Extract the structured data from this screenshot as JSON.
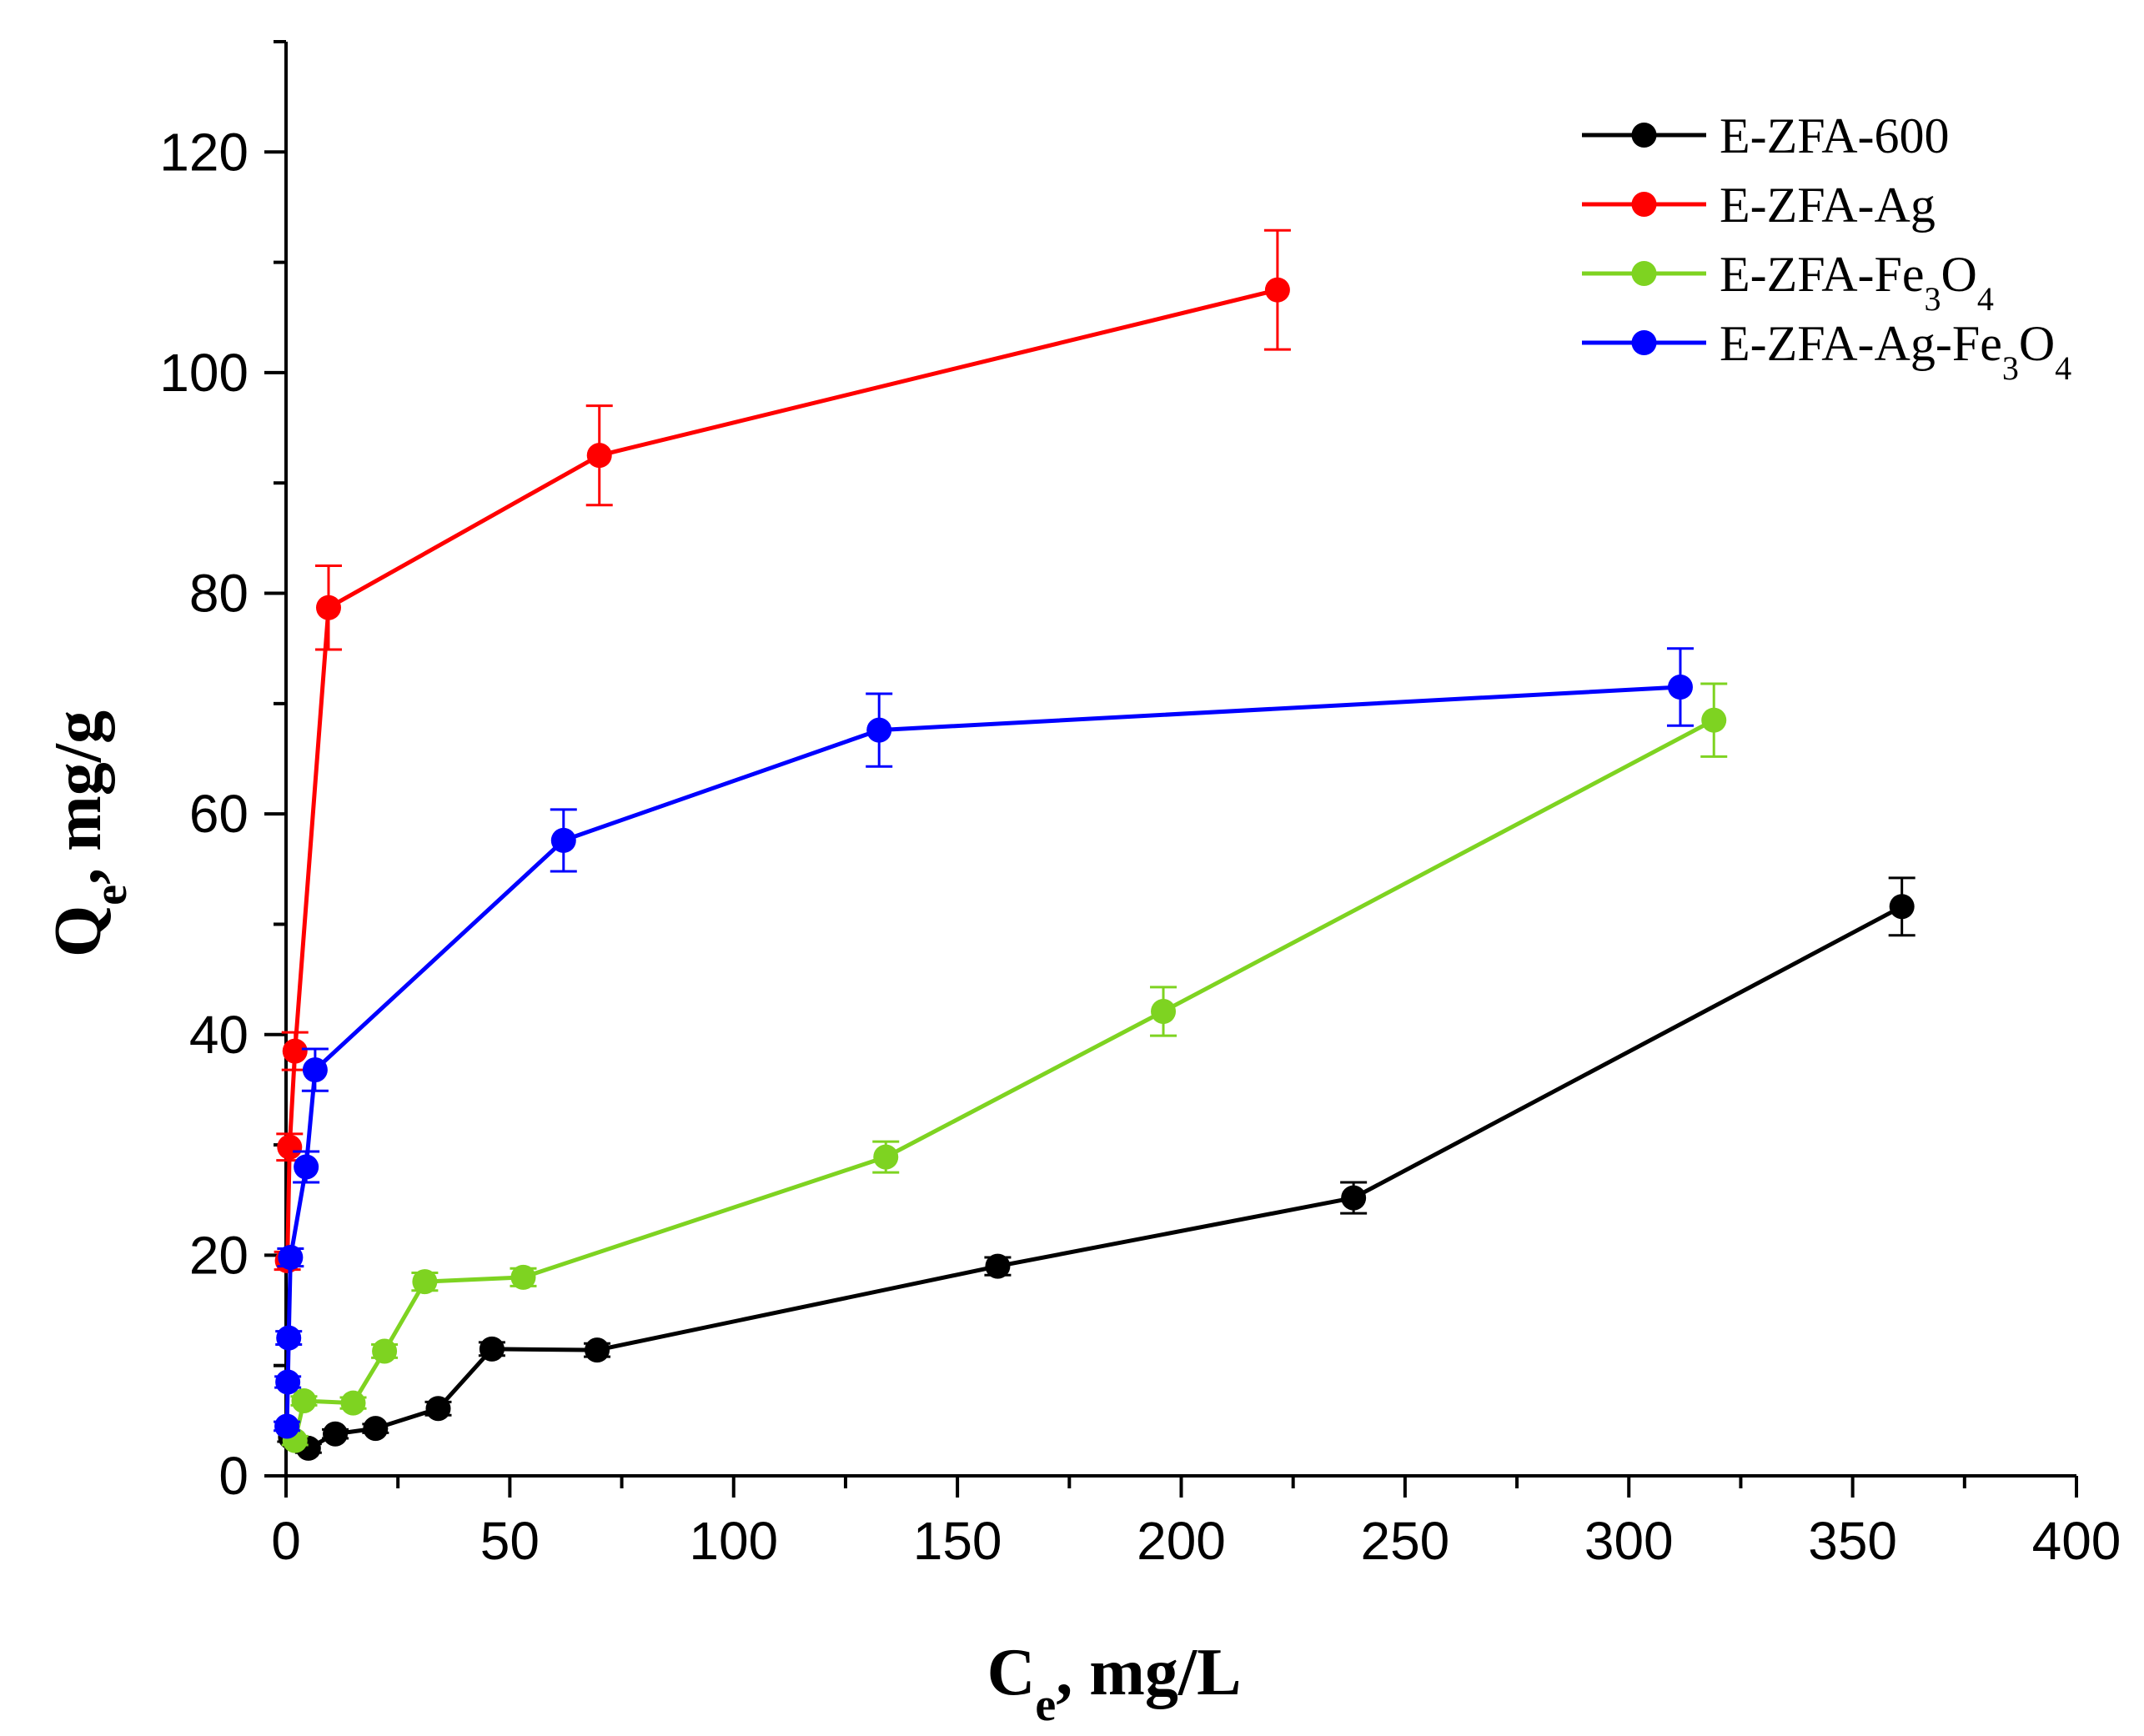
{
  "chart_data": {
    "type": "line",
    "title": "",
    "xlabel": {
      "main": "C",
      "sub": "e",
      "rest": ", mg/L"
    },
    "ylabel": {
      "main": "Q",
      "sub": "e",
      "rest": ", mg/g"
    },
    "xlim": [
      0,
      400
    ],
    "ylim": [
      0,
      130
    ],
    "xticks": [
      0,
      50,
      100,
      150,
      200,
      250,
      300,
      350,
      400
    ],
    "yticks": [
      0,
      20,
      40,
      60,
      80,
      100,
      120
    ],
    "x_minor_step": 25,
    "y_minor_step": 10,
    "grid": false,
    "legend_position": "top-right",
    "series": [
      {
        "name": "E-ZFA-600",
        "legend_parts": [
          {
            "t": "E-ZFA-600"
          }
        ],
        "color": "#000000",
        "x": [
          1,
          5,
          11,
          20,
          34,
          46,
          69.5,
          159,
          238.5,
          361
        ],
        "y": [
          3.5,
          2.5,
          3.8,
          4.3,
          6.1,
          11.5,
          11.4,
          19.0,
          25.2,
          51.6
        ],
        "err": [
          0.4,
          0.4,
          0.4,
          0.4,
          0.6,
          0.6,
          0.6,
          0.8,
          1.4,
          2.6
        ]
      },
      {
        "name": "E-ZFA-Ag",
        "legend_parts": [
          {
            "t": "E-ZFA-Ag"
          }
        ],
        "color": "#ff0000",
        "x": [
          0.3,
          0.8,
          2,
          9.5,
          70,
          221.5
        ],
        "y": [
          19.5,
          29.8,
          38.5,
          78.7,
          92.5,
          107.5
        ],
        "err": [
          0.8,
          1.2,
          1.7,
          3.8,
          4.5,
          5.4
        ]
      },
      {
        "name": "E-ZFA-Fe3O4",
        "legend_parts": [
          {
            "t": "E-ZFA-Fe"
          },
          {
            "t": "3",
            "sub": true
          },
          {
            "t": "O"
          },
          {
            "t": "4",
            "sub": true
          }
        ],
        "color": "#7ed321",
        "x": [
          2,
          4,
          15,
          22,
          31,
          53,
          134,
          196,
          319
        ],
        "y": [
          3.2,
          6.8,
          6.6,
          11.3,
          17.6,
          18.0,
          28.9,
          42.1,
          68.5
        ],
        "err": [
          0.4,
          0.4,
          0.5,
          0.6,
          0.8,
          0.8,
          1.4,
          2.2,
          3.3
        ]
      },
      {
        "name": "E-ZFA-Ag-Fe3O4",
        "legend_parts": [
          {
            "t": "E-ZFA-Ag-Fe"
          },
          {
            "t": "3",
            "sub": true
          },
          {
            "t": "O"
          },
          {
            "t": "4",
            "sub": true
          }
        ],
        "color": "#0000ff",
        "x": [
          0.2,
          0.4,
          0.6,
          1,
          4.5,
          6.5,
          62,
          132.5,
          311.5
        ],
        "y": [
          4.5,
          8.5,
          12.5,
          19.8,
          28.0,
          36.8,
          57.6,
          67.6,
          71.5
        ],
        "err": [
          0.4,
          0.5,
          0.6,
          0.8,
          1.4,
          1.9,
          2.8,
          3.3,
          3.5
        ]
      }
    ]
  }
}
